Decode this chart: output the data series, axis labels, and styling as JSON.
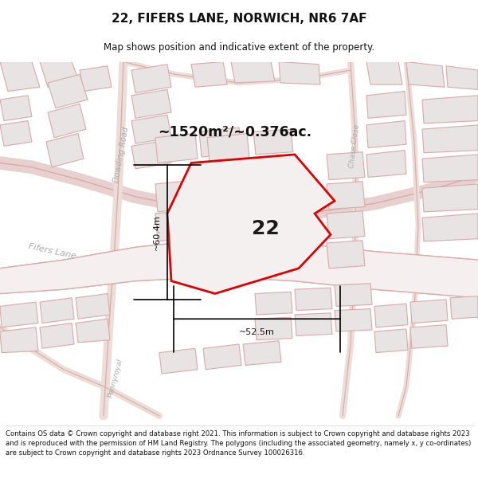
{
  "title": "22, FIFERS LANE, NORWICH, NR6 7AF",
  "subtitle": "Map shows position and indicative extent of the property.",
  "area_text": "~1520m²/~0.376ac.",
  "number_label": "22",
  "dim_vertical": "~60.4m",
  "dim_horizontal": "~52.5m",
  "footer": "Contains OS data © Crown copyright and database right 2021. This information is subject to Crown copyright and database rights 2023 and is reproduced with the permission of HM Land Registry. The polygons (including the associated geometry, namely x, y co-ordinates) are subject to Crown copyright and database rights 2023 Ordnance Survey 100026316.",
  "bg_color": "#f9f7f7",
  "plot_color": "#dd0000",
  "plot_fill": "#f5f0f0",
  "building_fc": "#e8e4e4",
  "building_ec": "#d8aaaa",
  "road_ec": "#d8aaaa",
  "road_fc": "#f5f0f0",
  "label_color": "#aaaaaa",
  "dim_color": "#111111",
  "title_color": "#111111"
}
